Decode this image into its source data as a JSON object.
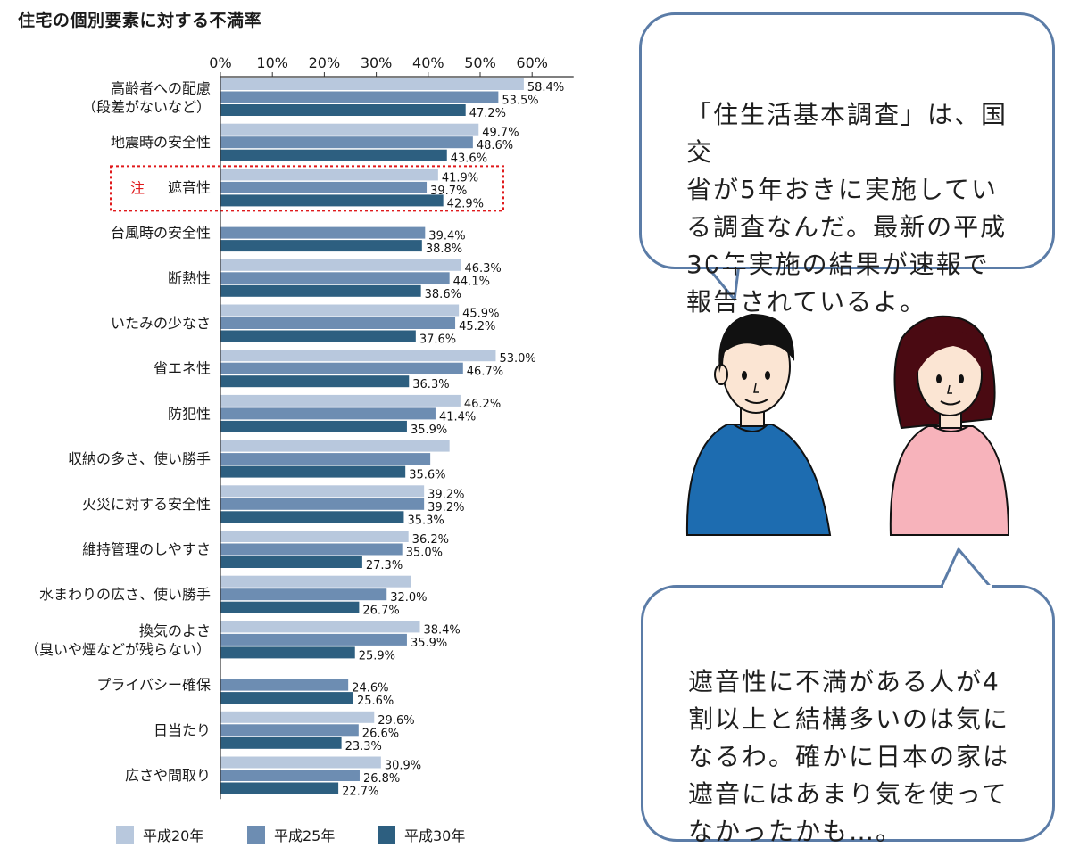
{
  "title": "住宅の個別要素に対する不満率",
  "bubbles": {
    "top": "「住生活基本調査」は、国交\n省が5年おきに実施してい\nる調査なんだ。最新の平成\n30年実施の結果が速報で\n報告されているよ。",
    "bottom": "遮音性に不満がある人が4\n割以上と結構多いのは気に\nなるわ。確かに日本の家は\n遮音にはあまり気を使って\nなかったかも…。"
  },
  "colors": {
    "h20": "#b8c8dd",
    "h25": "#6d8db2",
    "h30": "#2d5f80",
    "highlight": "#e0191b",
    "bubble_border": "#5b7ca7",
    "man_shirt": "#1d6cb0",
    "woman_shirt": "#f7b3bb",
    "woman_hair": "#4a0a12",
    "skin": "#fbe5d3"
  },
  "chart_data": {
    "type": "bar",
    "orientation": "horizontal",
    "title": "住宅の個別要素に対する不満率",
    "x_ticks": [
      "0%",
      "10%",
      "20%",
      "30%",
      "40%",
      "50%",
      "60%"
    ],
    "xlim": [
      0,
      60
    ],
    "unit": "%",
    "legend_position": "bottom",
    "categories": [
      [
        "高齢者への配慮",
        "（段差がないなど）"
      ],
      [
        "地震時の安全性"
      ],
      [
        "遮音性"
      ],
      [
        "台風時の安全性"
      ],
      [
        "断熱性"
      ],
      [
        "いたみの少なさ"
      ],
      [
        "省エネ性"
      ],
      [
        "防犯性"
      ],
      [
        "収納の多さ、使い勝手"
      ],
      [
        "火災に対する安全性"
      ],
      [
        "維持管理のしやすさ"
      ],
      [
        "水まわりの広さ、使い勝手"
      ],
      [
        "換気のよさ",
        "（臭いや煙などが残らない）"
      ],
      [
        "プライバシー確保"
      ],
      [
        "日当たり"
      ],
      [
        "広さや間取り"
      ]
    ],
    "highlight": {
      "category_index": 2,
      "marker": "注"
    },
    "series": [
      {
        "name": "平成20年",
        "color": "#b8c8dd",
        "values": [
          58.4,
          49.7,
          41.9,
          null,
          46.3,
          45.9,
          53.0,
          46.2,
          44.1,
          39.2,
          36.2,
          36.6,
          38.4,
          null,
          29.6,
          30.9
        ],
        "labels": [
          "58.4%",
          "49.7%",
          "41.9%",
          "",
          "46.3%",
          "45.9%",
          "53.0%",
          "46.2%",
          "",
          "39.2%",
          "36.2%",
          "",
          "38.4%",
          "",
          "29.6%",
          "30.9%"
        ]
      },
      {
        "name": "平成25年",
        "color": "#6d8db2",
        "values": [
          53.5,
          48.6,
          39.7,
          39.4,
          44.1,
          45.2,
          46.7,
          41.4,
          40.4,
          39.2,
          35.0,
          32.0,
          35.9,
          24.6,
          26.6,
          26.8
        ],
        "labels": [
          "53.5%",
          "48.6%",
          "39.7%",
          "39.4%",
          "44.1%",
          "45.2%",
          "46.7%",
          "41.4%",
          "",
          "39.2%",
          "35.0%",
          "32.0%",
          "35.9%",
          "24.6%",
          "26.6%",
          "26.8%"
        ]
      },
      {
        "name": "平成30年",
        "color": "#2d5f80",
        "values": [
          47.2,
          43.6,
          42.9,
          38.8,
          38.6,
          37.6,
          36.3,
          35.9,
          35.6,
          35.3,
          27.3,
          26.7,
          25.9,
          25.6,
          23.3,
          22.7
        ],
        "labels": [
          "47.2%",
          "43.6%",
          "42.9%",
          "38.8%",
          "38.6%",
          "37.6%",
          "36.3%",
          "35.9%",
          "35.6%",
          "35.3%",
          "27.3%",
          "26.7%",
          "25.9%",
          "25.6%",
          "23.3%",
          "22.7%"
        ]
      }
    ]
  }
}
